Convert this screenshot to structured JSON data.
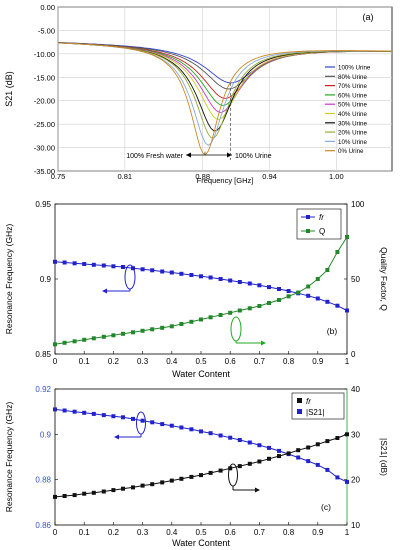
{
  "chart_data": [
    {
      "type": "line",
      "panel_label": "(a)",
      "xlabel": "Frequency [GHz]",
      "ylabel": "S21 (dB)",
      "xlim": [
        0.75,
        1.05
      ],
      "ylim": [
        -35,
        0
      ],
      "xticks": [
        "0.75",
        "0.81",
        "0.88",
        "0.94",
        "1.00"
      ],
      "xtick_values": [
        0.75,
        0.81,
        0.88,
        0.94,
        1.0
      ],
      "yticks": [
        "0.00",
        "-5.00",
        "-10.00",
        "-15.00",
        "-20.00",
        "-25.00",
        "-30.00",
        "-35.00"
      ],
      "ytick_values": [
        0,
        -5,
        -10,
        -15,
        -20,
        -25,
        -30,
        -35
      ],
      "grid": true,
      "legend_position": "right",
      "annotations": {
        "left": "100% Fresh water",
        "right": "100% Urine"
      },
      "series": [
        {
          "name": "100% Urine",
          "f0": 0.905,
          "min": -16.2,
          "color": "#3344cc"
        },
        {
          "name": "80% Urine",
          "f0": 0.903,
          "min": -17.5,
          "color": "#555555"
        },
        {
          "name": "70% Urine",
          "f0": 0.9,
          "min": -19.5,
          "color": "#cc2222"
        },
        {
          "name": "60% Urine",
          "f0": 0.898,
          "min": -21.0,
          "color": "#22aa22"
        },
        {
          "name": "50% Urine",
          "f0": 0.896,
          "min": -22.5,
          "color": "#cc33cc"
        },
        {
          "name": "40% Urine",
          "f0": 0.894,
          "min": -24.0,
          "color": "#cccc22"
        },
        {
          "name": "30% Urine",
          "f0": 0.891,
          "min": -26.5,
          "color": "#111111"
        },
        {
          "name": "20% Urine",
          "f0": 0.889,
          "min": -28.0,
          "color": "#99aa33"
        },
        {
          "name": "10% Urine",
          "f0": 0.885,
          "min": -29.5,
          "color": "#88aadd"
        },
        {
          "name": "0% Urine",
          "f0": 0.882,
          "min": -31.5,
          "color": "#cc8822"
        }
      ]
    },
    {
      "type": "line",
      "panel_label": "(b)",
      "xlabel": "Water Content",
      "ylabel": "Resonance Frequency (GHz)",
      "ylabel_right": "Quality Factor, Q",
      "xlim": [
        0,
        1
      ],
      "ylim": [
        0.85,
        0.95
      ],
      "ylim_right": [
        0,
        100
      ],
      "xticks": [
        "0",
        "0.1",
        "0.2",
        "0.3",
        "0.4",
        "0.5",
        "0.6",
        "0.7",
        "0.8",
        "0.9",
        "1"
      ],
      "yticks": [
        "0.85",
        "0.9",
        "0.95"
      ],
      "ytick_values": [
        0.85,
        0.9,
        0.95
      ],
      "yticks_right": [
        "0",
        "50",
        "100"
      ],
      "ytick_right_values": [
        0,
        50,
        100
      ],
      "legend_position": "top-right",
      "x": [
        0,
        0.033,
        0.067,
        0.1,
        0.133,
        0.167,
        0.2,
        0.233,
        0.267,
        0.3,
        0.333,
        0.367,
        0.4,
        0.433,
        0.467,
        0.5,
        0.533,
        0.567,
        0.6,
        0.633,
        0.667,
        0.7,
        0.733,
        0.767,
        0.8,
        0.833,
        0.867,
        0.9,
        0.933,
        0.967,
        1
      ],
      "series": [
        {
          "name": "fr",
          "axis": "left",
          "color": "#2222cc",
          "marker": "square",
          "values": [
            0.9115,
            0.911,
            0.9105,
            0.91,
            0.9095,
            0.909,
            0.9085,
            0.908,
            0.9072,
            0.9065,
            0.9058,
            0.905,
            0.9043,
            0.9035,
            0.9027,
            0.9018,
            0.901,
            0.9,
            0.899,
            0.898,
            0.897,
            0.8958,
            0.8946,
            0.8933,
            0.892,
            0.8905,
            0.8888,
            0.887,
            0.8848,
            0.8822,
            0.879
          ]
        },
        {
          "name": "Q",
          "axis": "right",
          "color": "#22882a",
          "marker": "square",
          "values": [
            6.5,
            7.5,
            8.5,
            9.5,
            10.5,
            11.5,
            12.5,
            13.5,
            14.5,
            15.5,
            16.5,
            17.5,
            18.5,
            20,
            21.5,
            23,
            24.5,
            26,
            27.5,
            29,
            30.5,
            32,
            34,
            36,
            38.5,
            41,
            45,
            50,
            56,
            68,
            78
          ]
        }
      ]
    },
    {
      "type": "line",
      "panel_label": "(c)",
      "xlabel": "Water Content",
      "ylabel": "Resonance Frequency (GHz)",
      "ylabel_right": "|S21| (dB)",
      "xlim": [
        0,
        1
      ],
      "ylim": [
        0.86,
        0.92
      ],
      "ylim_right": [
        10,
        40
      ],
      "xticks": [
        "0",
        "0.1",
        "0.2",
        "0.3",
        "0.4",
        "0.5",
        "0.6",
        "0.7",
        "0.8",
        "0.9",
        "1"
      ],
      "yticks": [
        "0.86",
        "0.88",
        "0.9",
        "0.92"
      ],
      "ytick_values": [
        0.86,
        0.88,
        0.9,
        0.92
      ],
      "yticks_right": [
        "10",
        "20",
        "30",
        "40"
      ],
      "ytick_right_values": [
        10,
        20,
        30,
        40
      ],
      "legend_position": "top-right",
      "x": [
        0,
        0.033,
        0.067,
        0.1,
        0.133,
        0.167,
        0.2,
        0.233,
        0.267,
        0.3,
        0.333,
        0.367,
        0.4,
        0.433,
        0.467,
        0.5,
        0.533,
        0.567,
        0.6,
        0.633,
        0.667,
        0.7,
        0.733,
        0.767,
        0.8,
        0.833,
        0.867,
        0.9,
        0.933,
        0.967,
        1
      ],
      "series": [
        {
          "name": "fr",
          "axis": "left",
          "color": "#2222cc",
          "marker": "square",
          "values": [
            0.911,
            0.9105,
            0.91,
            0.9095,
            0.909,
            0.9085,
            0.908,
            0.9075,
            0.9068,
            0.906,
            0.9053,
            0.9045,
            0.9038,
            0.903,
            0.9022,
            0.9013,
            0.9005,
            0.8995,
            0.8985,
            0.8975,
            0.8964,
            0.8952,
            0.894,
            0.8927,
            0.8913,
            0.8898,
            0.8882,
            0.8865,
            0.8843,
            0.881,
            0.879
          ]
        },
        {
          "name": "|S21|",
          "axis": "right",
          "color": "#111111",
          "marker": "square",
          "values": [
            16.2,
            16.4,
            16.6,
            16.9,
            17.1,
            17.4,
            17.7,
            18.0,
            18.3,
            18.7,
            19.0,
            19.4,
            19.8,
            20.2,
            20.6,
            21.0,
            21.5,
            22.0,
            22.5,
            23.0,
            23.5,
            24.0,
            24.6,
            25.2,
            25.8,
            26.5,
            27.1,
            27.8,
            28.5,
            29.2,
            30.0
          ]
        }
      ]
    }
  ]
}
